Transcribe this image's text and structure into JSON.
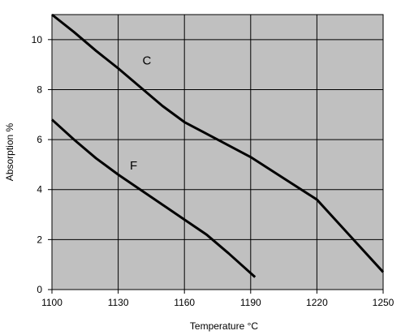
{
  "chart_data": {
    "type": "line",
    "xlabel": "Temperature  °C",
    "ylabel": "Absorption %",
    "xlim": [
      1100,
      1250
    ],
    "ylim": [
      0,
      11
    ],
    "xticks": [
      1100,
      1130,
      1160,
      1190,
      1220,
      1250
    ],
    "yticks": [
      0,
      2,
      4,
      6,
      8,
      10
    ],
    "grid": true,
    "background": "#c0c0c0",
    "line_color": "#000000",
    "series": [
      {
        "name": "C",
        "x": [
          1100,
          1110,
          1120,
          1130,
          1140,
          1150,
          1160,
          1175,
          1190,
          1205,
          1220,
          1235,
          1250
        ],
        "y": [
          11.0,
          10.3,
          9.55,
          8.85,
          8.1,
          7.35,
          6.7,
          6.0,
          5.3,
          4.45,
          3.6,
          2.15,
          0.7
        ]
      },
      {
        "name": "F",
        "x": [
          1100,
          1110,
          1120,
          1130,
          1140,
          1150,
          1160,
          1170,
          1180,
          1192
        ],
        "y": [
          6.8,
          6.0,
          5.25,
          4.6,
          4.0,
          3.4,
          2.8,
          2.2,
          1.45,
          0.5
        ]
      }
    ]
  }
}
